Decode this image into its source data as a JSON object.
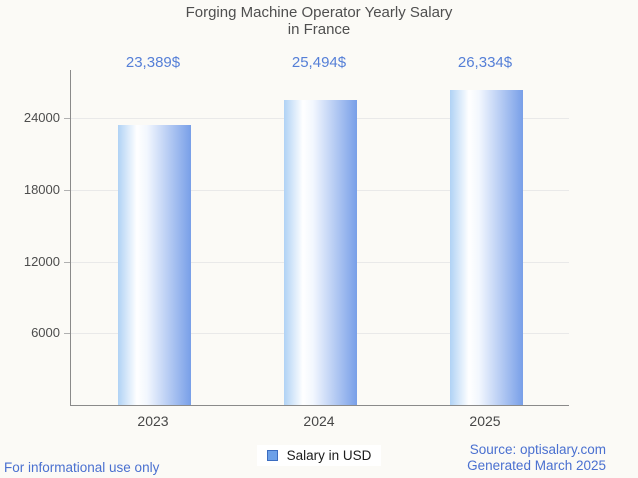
{
  "chart_data": {
    "type": "bar",
    "title_lines": [
      "Forging Machine Operator Yearly Salary",
      "in France"
    ],
    "title": "Forging Machine Operator Yearly Salary in France",
    "categories": [
      "2023",
      "2024",
      "2025"
    ],
    "series": [
      {
        "name": "Salary in USD",
        "values": [
          23389,
          25494,
          26334
        ]
      }
    ],
    "value_labels": [
      "23,389$",
      "25,494$",
      "26,334$"
    ],
    "xlabel": "",
    "ylabel": "",
    "y_ticks": [
      6000,
      12000,
      18000,
      24000
    ],
    "ylim": [
      0,
      28000
    ],
    "grid": true,
    "legend_position": "bottom-center"
  },
  "legend": {
    "label": "Salary in USD",
    "swatch_icon": "legend-swatch-square"
  },
  "footer": {
    "disclaimer": "For informational use only",
    "source": "Source: optisalary.com",
    "generated": "Generated March 2025"
  },
  "colors": {
    "background": "#fbfaf6",
    "title_color": "#4f4f4f",
    "value_color": "#557fd7",
    "footer_color": "#4a70d0",
    "axis_color": "#8a8a8a",
    "grid_color": "#e9e9e9",
    "tick_color": "#b0b0b0",
    "ylabel_color": "#4d4d4d",
    "xlabel_color": "#474747",
    "legend_swatch": "#6ca0e8",
    "legend_swatch_border": "#3b6cc0"
  },
  "bar_gradient_stops": [
    "#b0d2f5 0%",
    "#ffffff 26%",
    "#f2f7fe 40%",
    "#789fe8 100%"
  ]
}
